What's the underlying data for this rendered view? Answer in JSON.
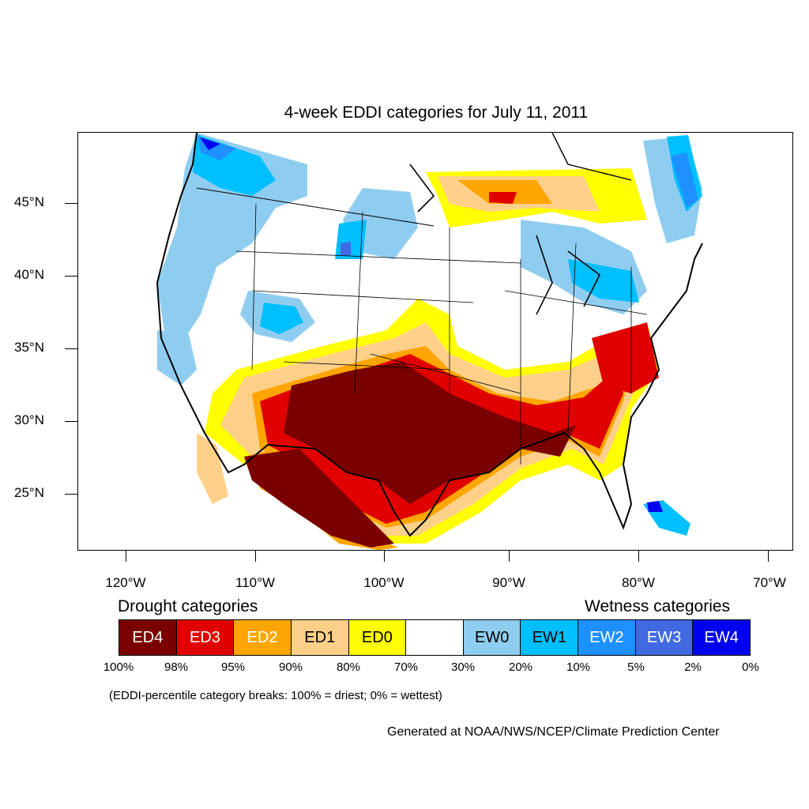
{
  "title": "4-week EDDI categories for July 11, 2011",
  "lat_labels": [
    "45°N",
    "40°N",
    "35°N",
    "30°N",
    "25°N"
  ],
  "lon_labels": [
    "120°W",
    "110°W",
    "100°W",
    "90°W",
    "80°W",
    "70°W"
  ],
  "drought_heading": "Drought categories",
  "wetness_heading": "Wetness categories",
  "legend": [
    {
      "label": "ED4",
      "color": "#7a0000",
      "text_color": "#ffffff"
    },
    {
      "label": "ED3",
      "color": "#e00000",
      "text_color": "#ffffff"
    },
    {
      "label": "ED2",
      "color": "#ffa500",
      "text_color": "#ffffff"
    },
    {
      "label": "ED1",
      "color": "#fdd08a",
      "text_color": "#000000"
    },
    {
      "label": "ED0",
      "color": "#ffff00",
      "text_color": "#000000"
    },
    {
      "label": "",
      "color": "#ffffff",
      "text_color": "#000000"
    },
    {
      "label": "EW0",
      "color": "#8fcdf0",
      "text_color": "#000000"
    },
    {
      "label": "EW1",
      "color": "#00bfff",
      "text_color": "#000000"
    },
    {
      "label": "EW2",
      "color": "#1e90ff",
      "text_color": "#ffffff"
    },
    {
      "label": "EW3",
      "color": "#4169e1",
      "text_color": "#ffffff"
    },
    {
      "label": "EW4",
      "color": "#0000ee",
      "text_color": "#ffffff"
    }
  ],
  "breaks": [
    "100%",
    "98%",
    "95%",
    "90%",
    "80%",
    "70%",
    "30%",
    "20%",
    "10%",
    "5%",
    "2%",
    "0%"
  ],
  "note": "(EDDI-percentile category breaks: 100% = driest; 0% = wettest)",
  "credit": "Generated at NOAA/NWS/NCEP/Climate Prediction Center"
}
